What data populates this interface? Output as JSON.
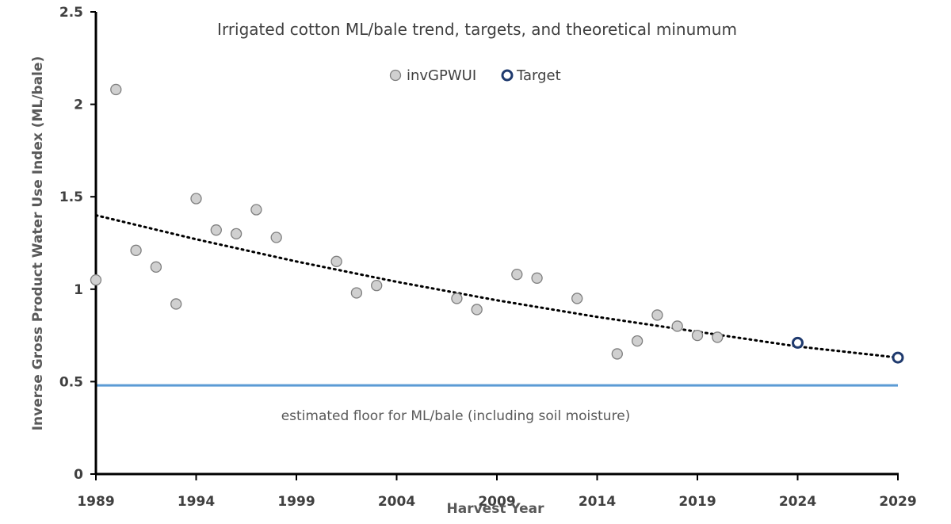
{
  "chart_data": {
    "type": "scatter",
    "title": "Irrigated cotton ML/bale trend, targets, and theoretical minumum",
    "xlabel": "Harvest Year",
    "ylabel": "Inverse Gross Product Water Use Index  (ML/bale)",
    "xlim": [
      1989,
      2029
    ],
    "ylim": [
      0,
      2.5
    ],
    "x_ticks": [
      "1989",
      "1994",
      "1999",
      "2004",
      "2009",
      "2014",
      "2019",
      "2024",
      "2029"
    ],
    "y_ticks": [
      "0",
      "0.5",
      "1",
      "1.5",
      "2",
      "2.5"
    ],
    "grid": false,
    "legend_position": "top-center",
    "series": [
      {
        "name": "invGPWUI",
        "marker": "filled-circle",
        "color": "#d0d0d0",
        "points": [
          {
            "x": 1989,
            "y": 1.05
          },
          {
            "x": 1990,
            "y": 2.08
          },
          {
            "x": 1991,
            "y": 1.21
          },
          {
            "x": 1992,
            "y": 1.12
          },
          {
            "x": 1993,
            "y": 0.92
          },
          {
            "x": 1994,
            "y": 1.49
          },
          {
            "x": 1995,
            "y": 1.32
          },
          {
            "x": 1996,
            "y": 1.3
          },
          {
            "x": 1997,
            "y": 1.43
          },
          {
            "x": 1998,
            "y": 1.28
          },
          {
            "x": 2001,
            "y": 1.15
          },
          {
            "x": 2002,
            "y": 0.98
          },
          {
            "x": 2003,
            "y": 1.02
          },
          {
            "x": 2007,
            "y": 0.95
          },
          {
            "x": 2008,
            "y": 0.89
          },
          {
            "x": 2010,
            "y": 1.08
          },
          {
            "x": 2011,
            "y": 1.06
          },
          {
            "x": 2013,
            "y": 0.95
          },
          {
            "x": 2015,
            "y": 0.65
          },
          {
            "x": 2016,
            "y": 0.72
          },
          {
            "x": 2017,
            "y": 0.86
          },
          {
            "x": 2018,
            "y": 0.8
          },
          {
            "x": 2019,
            "y": 0.75
          },
          {
            "x": 2020,
            "y": 0.74
          }
        ]
      },
      {
        "name": "Target",
        "marker": "open-circle",
        "color": "#1f3a6e",
        "points": [
          {
            "x": 2024,
            "y": 0.71
          },
          {
            "x": 2029,
            "y": 0.63
          }
        ]
      }
    ],
    "trendline": {
      "style": "dotted",
      "color": "#000000",
      "points": [
        {
          "x": 1989,
          "y": 1.4
        },
        {
          "x": 1994,
          "y": 1.27
        },
        {
          "x": 1999,
          "y": 1.15
        },
        {
          "x": 2004,
          "y": 1.04
        },
        {
          "x": 2009,
          "y": 0.94
        },
        {
          "x": 2014,
          "y": 0.85
        },
        {
          "x": 2019,
          "y": 0.77
        },
        {
          "x": 2024,
          "y": 0.69
        },
        {
          "x": 2029,
          "y": 0.63
        }
      ]
    },
    "reference_line": {
      "y": 0.48,
      "color": "#5b9bd5",
      "label": "estimated floor for ML/bale (including soil moisture)"
    }
  }
}
